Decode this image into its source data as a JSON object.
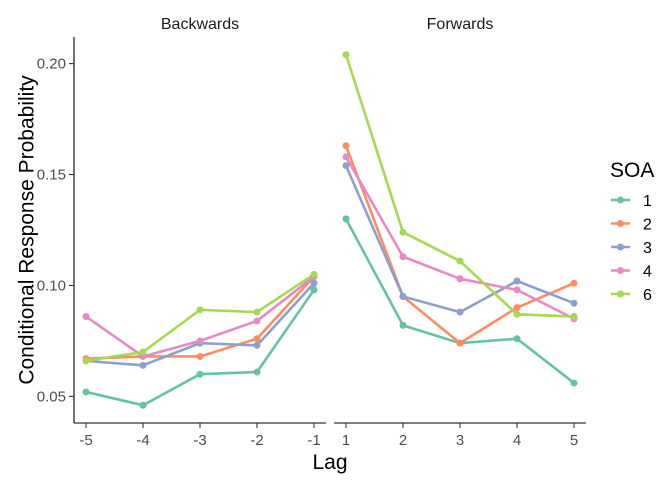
{
  "chart_data": {
    "type": "line",
    "xlabel": "Lag",
    "ylabel": "Conditional Response Probability",
    "ylim": [
      0.038,
      0.212
    ],
    "yticks": [
      0.05,
      0.1,
      0.15,
      0.2
    ],
    "ytick_labels": [
      "0.05",
      "0.10",
      "0.15",
      "0.20"
    ],
    "grid": false,
    "legend": {
      "title": "SOA",
      "placement": "right"
    },
    "panels": [
      {
        "label": "Backwards",
        "x": [
          -5,
          -4,
          -3,
          -2,
          -1
        ],
        "x_labels": [
          "-5",
          "-4",
          "-3",
          "-2",
          "-1"
        ],
        "series": [
          {
            "name": "1",
            "color": "#66c2a5",
            "values": [
              0.052,
              0.046,
              0.06,
              0.061,
              0.098
            ]
          },
          {
            "name": "2",
            "color": "#fc8d62",
            "values": [
              0.067,
              0.068,
              0.068,
              0.076,
              0.104
            ]
          },
          {
            "name": "3",
            "color": "#8da0cb",
            "values": [
              0.066,
              0.064,
              0.074,
              0.073,
              0.101
            ]
          },
          {
            "name": "4",
            "color": "#e78ac3",
            "values": [
              0.086,
              0.068,
              0.075,
              0.084,
              0.104
            ]
          },
          {
            "name": "6",
            "color": "#a6d854",
            "values": [
              0.066,
              0.07,
              0.089,
              0.088,
              0.105
            ]
          }
        ]
      },
      {
        "label": "Forwards",
        "x": [
          1,
          2,
          3,
          4,
          5
        ],
        "x_labels": [
          "1",
          "2",
          "3",
          "4",
          "5"
        ],
        "series": [
          {
            "name": "1",
            "color": "#66c2a5",
            "values": [
              0.13,
              0.082,
              0.074,
              0.076,
              0.056
            ]
          },
          {
            "name": "2",
            "color": "#fc8d62",
            "values": [
              0.163,
              0.095,
              0.074,
              0.09,
              0.101
            ]
          },
          {
            "name": "3",
            "color": "#8da0cb",
            "values": [
              0.154,
              0.095,
              0.088,
              0.102,
              0.092
            ]
          },
          {
            "name": "4",
            "color": "#e78ac3",
            "values": [
              0.158,
              0.113,
              0.103,
              0.098,
              0.085
            ]
          },
          {
            "name": "6",
            "color": "#a6d854",
            "values": [
              0.204,
              0.124,
              0.111,
              0.087,
              0.086
            ]
          }
        ]
      }
    ]
  }
}
